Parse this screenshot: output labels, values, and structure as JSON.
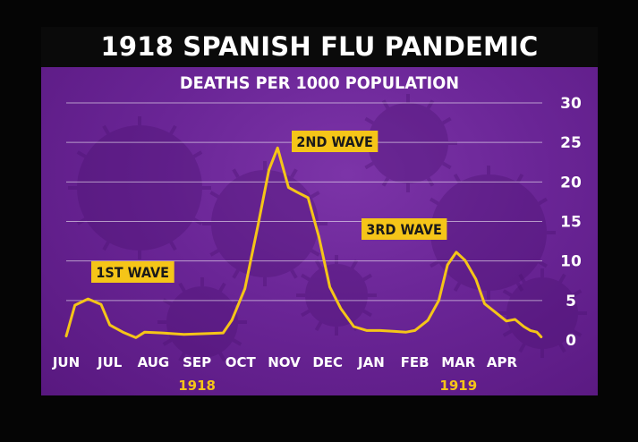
{
  "chart_data": {
    "type": "line",
    "title": "1918 SPANISH FLU PANDEMIC",
    "subtitle": "DEATHS PER 1000 POPULATION",
    "xlabel": "",
    "ylabel": "",
    "x_start": "1918-06",
    "x_end": "1919-04",
    "month_ticks": [
      "JUN",
      "JUL",
      "AUG",
      "SEP",
      "OCT",
      "NOV",
      "DEC",
      "JAN",
      "FEB",
      "MAR",
      "APR"
    ],
    "year_labels": [
      {
        "text": "1918",
        "month_index": 3
      },
      {
        "text": "1919",
        "month_index": 9
      }
    ],
    "y_ticks": [
      0,
      5,
      10,
      15,
      20,
      25,
      30
    ],
    "ylim": [
      0,
      30
    ],
    "y_axis_side": "right",
    "grid": "horizontal",
    "annotations": [
      "1ST WAVE",
      "2ND WAVE",
      "3RD WAVE"
    ],
    "series": [
      {
        "color": "#f5c518",
        "points": [
          [
            0.0,
            0.5
          ],
          [
            0.2,
            4.4
          ],
          [
            0.5,
            5.2
          ],
          [
            0.8,
            4.5
          ],
          [
            1.0,
            1.9
          ],
          [
            1.3,
            1.0
          ],
          [
            1.6,
            0.3
          ],
          [
            1.8,
            1.0
          ],
          [
            2.2,
            0.9
          ],
          [
            2.7,
            0.7
          ],
          [
            3.2,
            0.8
          ],
          [
            3.6,
            0.9
          ],
          [
            3.8,
            2.5
          ],
          [
            4.1,
            6.5
          ],
          [
            4.4,
            14.5
          ],
          [
            4.65,
            21.5
          ],
          [
            4.85,
            24.3
          ],
          [
            5.1,
            19.3
          ],
          [
            5.3,
            18.7
          ],
          [
            5.55,
            18.0
          ],
          [
            5.8,
            13.0
          ],
          [
            6.05,
            6.7
          ],
          [
            6.3,
            4.0
          ],
          [
            6.6,
            1.7
          ],
          [
            6.9,
            1.2
          ],
          [
            7.2,
            1.2
          ],
          [
            7.5,
            1.1
          ],
          [
            7.8,
            1.0
          ],
          [
            8.0,
            1.2
          ],
          [
            8.3,
            2.5
          ],
          [
            8.55,
            5.0
          ],
          [
            8.75,
            9.5
          ],
          [
            8.95,
            11.1
          ],
          [
            9.15,
            10.1
          ],
          [
            9.4,
            7.7
          ],
          [
            9.6,
            4.6
          ],
          [
            9.85,
            3.5
          ],
          [
            10.1,
            2.4
          ],
          [
            10.3,
            2.6
          ],
          [
            10.5,
            1.7
          ],
          [
            10.65,
            1.2
          ],
          [
            10.8,
            1.0
          ],
          [
            10.9,
            0.4
          ]
        ]
      }
    ]
  }
}
